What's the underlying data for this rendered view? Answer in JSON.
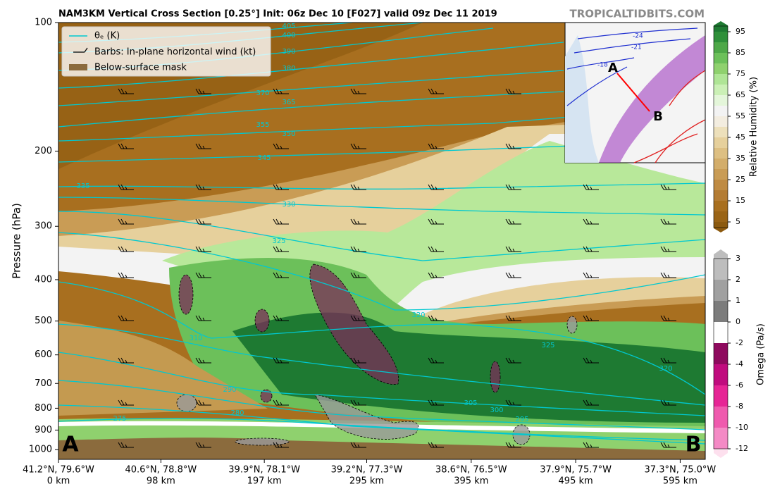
{
  "chart_data": {
    "type": "cross-section",
    "title": "NAM3KM Vertical Cross Section [0.25°] Init: 06z Dec 10 [F027] valid 09z Dec 11 2019",
    "source": "TROPICALTIDBITS.COM",
    "y_label": "Pressure (hPa)",
    "y_log": true,
    "ylim": [
      1054,
      100
    ],
    "yticks": [
      100,
      200,
      300,
      400,
      500,
      600,
      700,
      800,
      900,
      1000
    ],
    "xlim": [
      0,
      619
    ],
    "xticks": [
      {
        "value": 0,
        "label": "0 km"
      },
      {
        "value": 98,
        "label": "98 km"
      },
      {
        "value": 197,
        "label": "197 km"
      },
      {
        "value": 295,
        "label": "295 km"
      },
      {
        "value": 395,
        "label": "395 km"
      },
      {
        "value": 495,
        "label": "495 km"
      },
      {
        "value": 595,
        "label": "595 km"
      }
    ],
    "xtick_coords": [
      "41.2°N, 79.6°W",
      "40.6°N, 78.8°W",
      "39.9°N, 78.1°W",
      "39.2°N, 77.3°W",
      "38.6°N, 76.5°W",
      "37.9°N, 75.7°W",
      "37.3°N, 75.0°W"
    ],
    "section_start": "A",
    "section_end": "B",
    "legend": {
      "items": [
        "θₑ (K)",
        "Barbs: In-plane horizontal wind (kt)",
        "Below-surface mask"
      ],
      "colors": [
        "#00c8d0",
        "#000000",
        "#8b6b3d"
      ]
    },
    "theta_e_labels": [
      405,
      400,
      390,
      380,
      370,
      365,
      355,
      350,
      345,
      335,
      330,
      325,
      320,
      310,
      305,
      300,
      295,
      290,
      280,
      275,
      320,
      325
    ],
    "theta_e_color": "#00c8d0",
    "rh_colorbar": {
      "label": "Relative Humidity (%)",
      "clim": [
        0,
        100
      ],
      "ticks": [
        5,
        15,
        25,
        35,
        45,
        55,
        65,
        75,
        85,
        95
      ],
      "colors": [
        "#8c5a0f",
        "#9a6416",
        "#a86f1f",
        "#b47c33",
        "#bf8b43",
        "#c99c55",
        "#d3ad6a",
        "#ddbf82",
        "#e6d09c",
        "#ede0bb",
        "#f3ede0",
        "#f3f3f3",
        "#e4f6da",
        "#cbf0b6",
        "#afe596",
        "#8fd16e",
        "#6cc05a",
        "#4ea848",
        "#2f903a",
        "#1e7a32"
      ]
    },
    "omega_colorbar": {
      "label": "Omega (Pa/s)",
      "ticks": [
        3,
        2,
        1,
        0,
        -2,
        -4,
        -6,
        -8,
        -10,
        -12
      ],
      "colors": [
        "#bdbdbd",
        "#a0a0a0",
        "#7c7c7c",
        "#ffffff",
        "#8e0a5e",
        "#c00c7e",
        "#e62595",
        "#ef5aae",
        "#f48ac5",
        "#f9b9da",
        "#fde0ee"
      ]
    },
    "inset": {
      "start": "A",
      "end": "B",
      "contour_labels": [
        -24,
        -21,
        -18
      ]
    }
  }
}
